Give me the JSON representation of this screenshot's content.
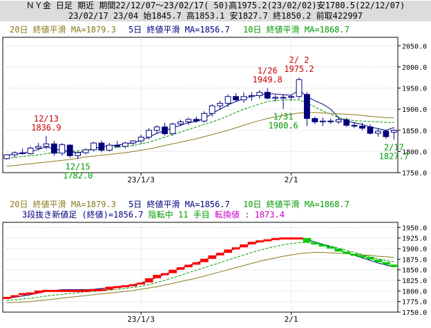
{
  "header": {
    "line1": "ＮＹ金 日足 期近 期間22/12/07～23/02/17( 50)高1975.2(23/02/02)安1780.5(22/12/07)",
    "line2": "23/02/17 23/04 始1845.7 高1853.1 安1827.7 終1850.2 前取422997"
  },
  "legend": {
    "ma20": "20日 終値平滑 MA=1879.3",
    "ma5": "5日 終値平滑 MA=1856.7",
    "ma10": "10日 終値平滑 MA=1868.7",
    "three_line_break": "3段抜き新値足 (終値)=1856.7",
    "reversal_state": "陰転中",
    "count_value": "11",
    "count_unit": "手目",
    "reversal_label": "転換値 :",
    "reversal_value": "1873.4"
  },
  "colors": {
    "ma20": "#8a7a1a",
    "ma5": "#000080",
    "ma10": "#009900",
    "up_candle_fill": "#ffffff",
    "down_candle_fill": "#00007a",
    "annot_high": "#cc0000",
    "annot_low": "#009900",
    "break_up": "#ff0000",
    "break_down": "#00cc00",
    "reversal_text": "#cc00cc"
  },
  "chart_data": [
    {
      "type": "candlestick",
      "title": "",
      "ylim": [
        1750,
        2070
      ],
      "yticks": [
        1750,
        1800,
        1850,
        1900,
        1950,
        2000,
        2050
      ],
      "ytick_labels": [
        "1750.0",
        "1800.0",
        "1850.0",
        "1900.0",
        "1950.0",
        "2000.0",
        "2050.0"
      ],
      "xtick_labels": [
        {
          "label": "23/1/3",
          "index": 17
        },
        {
          "label": "2/1",
          "index": 36
        }
      ],
      "grid": true,
      "candles": [
        {
          "o": 1783,
          "h": 1792,
          "l": 1780.5,
          "c": 1792
        },
        {
          "o": 1792,
          "h": 1800,
          "l": 1786,
          "c": 1797
        },
        {
          "o": 1797,
          "h": 1807,
          "l": 1792,
          "c": 1795
        },
        {
          "o": 1795,
          "h": 1812,
          "l": 1792,
          "c": 1808
        },
        {
          "o": 1808,
          "h": 1820,
          "l": 1803,
          "c": 1812
        },
        {
          "o": 1812,
          "h": 1836.9,
          "l": 1805,
          "c": 1818
        },
        {
          "o": 1818,
          "h": 1825,
          "l": 1790,
          "c": 1796
        },
        {
          "o": 1796,
          "h": 1820,
          "l": 1790,
          "c": 1816
        },
        {
          "o": 1815,
          "h": 1818,
          "l": 1785,
          "c": 1790
        },
        {
          "o": 1790,
          "h": 1800,
          "l": 1782,
          "c": 1797
        },
        {
          "o": 1797,
          "h": 1808,
          "l": 1793,
          "c": 1804
        },
        {
          "o": 1804,
          "h": 1823,
          "l": 1800,
          "c": 1820
        },
        {
          "o": 1820,
          "h": 1826,
          "l": 1798,
          "c": 1803
        },
        {
          "o": 1803,
          "h": 1820,
          "l": 1800,
          "c": 1815
        },
        {
          "o": 1815,
          "h": 1825,
          "l": 1808,
          "c": 1812
        },
        {
          "o": 1812,
          "h": 1823,
          "l": 1807,
          "c": 1820
        },
        {
          "o": 1820,
          "h": 1827,
          "l": 1814,
          "c": 1825
        },
        {
          "o": 1825,
          "h": 1840,
          "l": 1818,
          "c": 1834
        },
        {
          "o": 1834,
          "h": 1855,
          "l": 1828,
          "c": 1850
        },
        {
          "o": 1850,
          "h": 1862,
          "l": 1842,
          "c": 1858
        },
        {
          "o": 1858,
          "h": 1868,
          "l": 1838,
          "c": 1842
        },
        {
          "o": 1842,
          "h": 1868,
          "l": 1838,
          "c": 1865
        },
        {
          "o": 1865,
          "h": 1875,
          "l": 1860,
          "c": 1870
        },
        {
          "o": 1870,
          "h": 1880,
          "l": 1863,
          "c": 1876
        },
        {
          "o": 1876,
          "h": 1883,
          "l": 1868,
          "c": 1872
        },
        {
          "o": 1872,
          "h": 1895,
          "l": 1868,
          "c": 1890
        },
        {
          "o": 1890,
          "h": 1912,
          "l": 1882,
          "c": 1908
        },
        {
          "o": 1908,
          "h": 1920,
          "l": 1898,
          "c": 1914
        },
        {
          "o": 1914,
          "h": 1935,
          "l": 1905,
          "c": 1930
        },
        {
          "o": 1930,
          "h": 1938,
          "l": 1918,
          "c": 1922
        },
        {
          "o": 1922,
          "h": 1940,
          "l": 1915,
          "c": 1930
        },
        {
          "o": 1930,
          "h": 1940,
          "l": 1920,
          "c": 1932
        },
        {
          "o": 1932,
          "h": 1945,
          "l": 1925,
          "c": 1940
        },
        {
          "o": 1940,
          "h": 1949.8,
          "l": 1923,
          "c": 1926
        },
        {
          "o": 1926,
          "h": 1934,
          "l": 1918,
          "c": 1928
        },
        {
          "o": 1928,
          "h": 1936,
          "l": 1900.6,
          "c": 1928
        },
        {
          "o": 1928,
          "h": 1935,
          "l": 1920,
          "c": 1930
        },
        {
          "o": 1930,
          "h": 1975.2,
          "l": 1925,
          "c": 1970
        },
        {
          "o": 1935,
          "h": 1940,
          "l": 1860,
          "c": 1878
        },
        {
          "o": 1878,
          "h": 1882,
          "l": 1865,
          "c": 1870
        },
        {
          "o": 1870,
          "h": 1880,
          "l": 1860,
          "c": 1872
        },
        {
          "o": 1872,
          "h": 1878,
          "l": 1865,
          "c": 1870
        },
        {
          "o": 1870,
          "h": 1882,
          "l": 1865,
          "c": 1875
        },
        {
          "o": 1875,
          "h": 1880,
          "l": 1858,
          "c": 1862
        },
        {
          "o": 1862,
          "h": 1870,
          "l": 1855,
          "c": 1860
        },
        {
          "o": 1860,
          "h": 1868,
          "l": 1850,
          "c": 1855
        },
        {
          "o": 1858,
          "h": 1864,
          "l": 1840,
          "c": 1843
        },
        {
          "o": 1843,
          "h": 1855,
          "l": 1835,
          "c": 1848
        },
        {
          "o": 1848,
          "h": 1852,
          "l": 1830,
          "c": 1835
        },
        {
          "o": 1845.7,
          "h": 1853.1,
          "l": 1827.7,
          "c": 1850.2
        }
      ],
      "series": [
        {
          "name": "5日",
          "values": [
            1792,
            1793,
            1796,
            1799,
            1805,
            1811,
            1806,
            1803,
            1800,
            1797,
            1801,
            1808,
            1811,
            1814,
            1815,
            1818,
            1820,
            1826,
            1834,
            1843,
            1849,
            1856,
            1862,
            1868,
            1871,
            1878,
            1890,
            1900,
            1910,
            1918,
            1925,
            1930,
            1934,
            1937,
            1936,
            1934,
            1933,
            1945,
            1930,
            1920,
            1912,
            1900,
            1880,
            1872,
            1868,
            1864,
            1858,
            1854,
            1850,
            1856.7
          ]
        },
        {
          "name": "10日",
          "values": [
            1785,
            1786,
            1788,
            1790,
            1792,
            1795,
            1797,
            1798,
            1800,
            1802,
            1803,
            1804,
            1806,
            1808,
            1810,
            1812,
            1814,
            1818,
            1822,
            1828,
            1834,
            1840,
            1846,
            1852,
            1858,
            1864,
            1870,
            1876,
            1884,
            1892,
            1900,
            1906,
            1912,
            1918,
            1921,
            1922,
            1922,
            1922,
            1915,
            1905,
            1896,
            1888,
            1880,
            1876,
            1873,
            1872,
            1871,
            1870,
            1869,
            1868.7
          ]
        },
        {
          "name": "20日",
          "values": [
            1765,
            1767,
            1769,
            1771,
            1773,
            1775,
            1777,
            1779,
            1781,
            1784,
            1787,
            1789,
            1791,
            1793,
            1795,
            1797,
            1800,
            1803,
            1806,
            1810,
            1814,
            1818,
            1822,
            1826,
            1830,
            1835,
            1840,
            1845,
            1850,
            1856,
            1862,
            1868,
            1873,
            1878,
            1882,
            1885,
            1888,
            1891,
            1892,
            1892,
            1891,
            1890,
            1889,
            1888,
            1887,
            1885,
            1883,
            1882,
            1880,
            1879.3
          ]
        }
      ],
      "annotations": [
        {
          "label": "12/13",
          "value": "1836.9",
          "index": 5,
          "kind": "high"
        },
        {
          "label": "12/15",
          "value": "1782.0",
          "index": 9,
          "kind": "low"
        },
        {
          "label": "1/26",
          "value": "1949.8",
          "index": 33,
          "kind": "high"
        },
        {
          "label": "1/31",
          "value": "1900.6",
          "index": 35,
          "kind": "low"
        },
        {
          "label": "2/ 2",
          "value": "1975.2",
          "index": 37,
          "kind": "high"
        },
        {
          "label": "2/17",
          "value": "1827.7",
          "index": 49,
          "kind": "low"
        }
      ]
    },
    {
      "type": "three_line_break",
      "title": "",
      "ylim": [
        1750,
        1962
      ],
      "yticks": [
        1750,
        1775,
        1800,
        1825,
        1850,
        1875,
        1900,
        1925,
        1950
      ],
      "ytick_labels": [
        "1750.0",
        "1775.0",
        "1800.0",
        "1825.0",
        "1850.0",
        "1875.0",
        "1900.0",
        "1925.0",
        "1950.0"
      ],
      "xtick_labels": [
        {
          "label": "23/1/3",
          "index": 17
        },
        {
          "label": "2/1",
          "index": 36
        }
      ],
      "grid": true,
      "closes": [
        1786,
        1790,
        1795,
        1795,
        1801,
        1801,
        1801,
        1801,
        1801,
        1801,
        1801,
        1803,
        1803,
        1810,
        1810,
        1812,
        1816,
        1820,
        1830,
        1838,
        1842,
        1850,
        1856,
        1862,
        1868,
        1876,
        1884,
        1890,
        1898,
        1903,
        1910,
        1916,
        1918,
        1922,
        1925,
        1925,
        1925,
        1925,
        1915,
        1910,
        1905,
        1900,
        1893,
        1888,
        1884,
        1880,
        1874,
        1868,
        1862,
        1856.7
      ],
      "series": [
        {
          "name": "5日",
          "values": [
            1783,
            1785,
            1788,
            1791,
            1795,
            1799,
            1801,
            1803,
            1803,
            1803,
            1803,
            1804,
            1806,
            1808,
            1810,
            1812,
            1815,
            1819,
            1825,
            1832,
            1839,
            1846,
            1853,
            1860,
            1866,
            1873,
            1880,
            1887,
            1894,
            1900,
            1906,
            1912,
            1916,
            1919,
            1922,
            1924,
            1925,
            1924,
            1921,
            1916,
            1910,
            1904,
            1897,
            1890,
            1884,
            1878,
            1872,
            1866,
            1861,
            1856.7
          ]
        },
        {
          "name": "10日",
          "values": [
            1778,
            1779,
            1781,
            1783,
            1785,
            1788,
            1790,
            1792,
            1794,
            1796,
            1798,
            1799,
            1800,
            1802,
            1804,
            1806,
            1808,
            1811,
            1815,
            1820,
            1825,
            1831,
            1837,
            1843,
            1849,
            1855,
            1861,
            1867,
            1873,
            1879,
            1885,
            1891,
            1896,
            1901,
            1905,
            1909,
            1912,
            1914,
            1914,
            1913,
            1910,
            1906,
            1901,
            1896,
            1891,
            1886,
            1881,
            1876,
            1872,
            1868.7
          ]
        },
        {
          "name": "20日",
          "values": [
            1772,
            1773,
            1774,
            1775,
            1777,
            1779,
            1781,
            1783,
            1785,
            1787,
            1789,
            1791,
            1793,
            1795,
            1797,
            1799,
            1801,
            1804,
            1807,
            1810,
            1814,
            1818,
            1822,
            1826,
            1830,
            1835,
            1840,
            1845,
            1850,
            1855,
            1860,
            1865,
            1870,
            1874,
            1878,
            1882,
            1885,
            1888,
            1890,
            1891,
            1891,
            1890,
            1889,
            1888,
            1887,
            1885,
            1884,
            1882,
            1881,
            1879.3
          ]
        }
      ]
    }
  ]
}
